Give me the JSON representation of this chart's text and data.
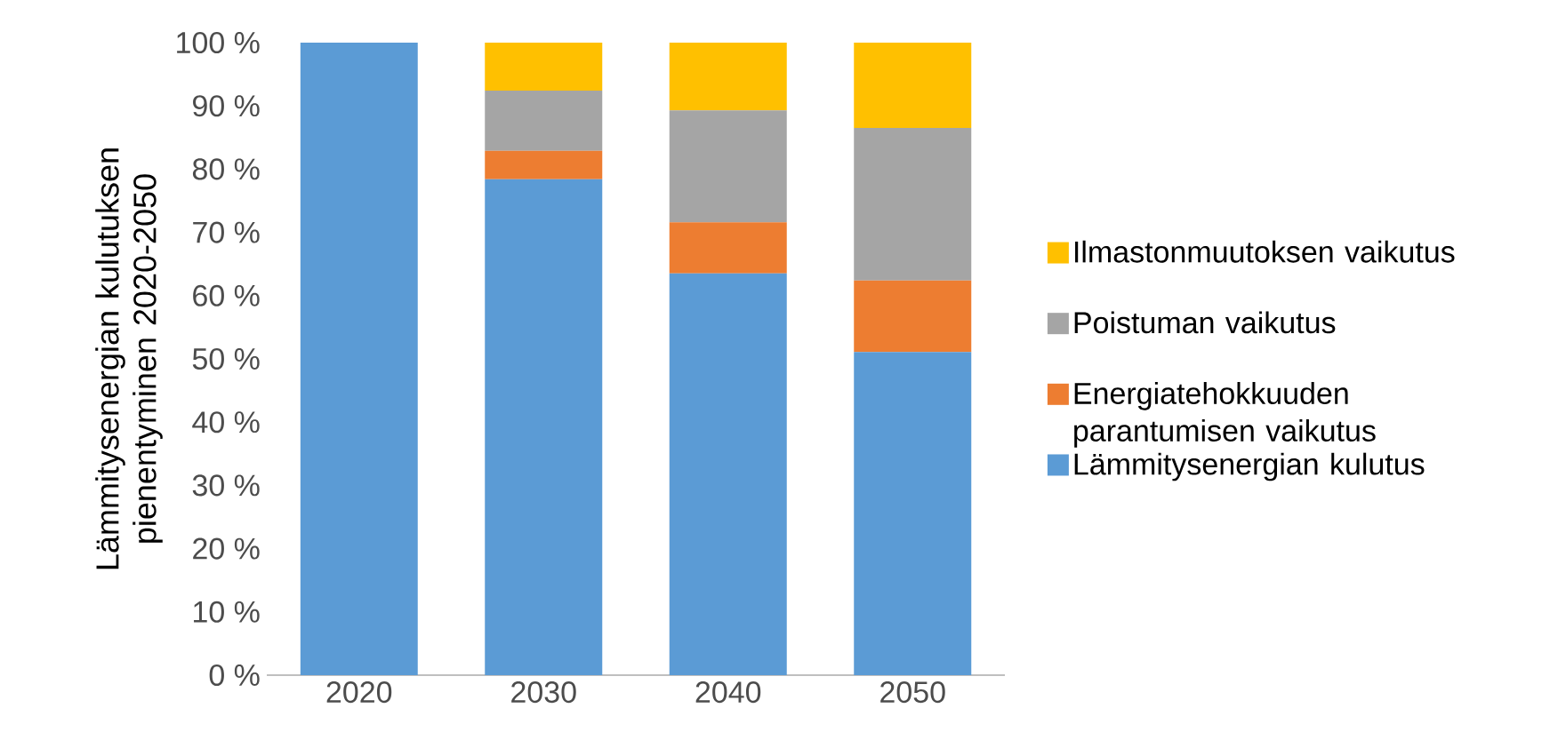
{
  "chart_data": {
    "type": "bar",
    "stacked": true,
    "ylabel": "Lämmitysenergian kulutuksen pienentyminen 2020-2050",
    "categories": [
      "2020",
      "2030",
      "2040",
      "2050"
    ],
    "series": [
      {
        "name": "Lämmitysenergian kulutus",
        "color": "#5b9bd5",
        "values": [
          100,
          78.4,
          63.5,
          51.1
        ]
      },
      {
        "name": "Energiatehokkuuden parantumisen vaikutus",
        "color": "#ed7d31",
        "values": [
          0,
          4.5,
          8.1,
          11.3
        ]
      },
      {
        "name": "Poistuman vaikutus",
        "color": "#a5a5a5",
        "values": [
          0,
          9.5,
          17.7,
          24.1
        ]
      },
      {
        "name": "Ilmastonmuutoksen vaikutus",
        "color": "#ffc000",
        "values": [
          0,
          7.6,
          10.7,
          13.5
        ]
      }
    ],
    "ylim": [
      0,
      100
    ],
    "yticks": [
      {
        "value": 0,
        "label": "0 %"
      },
      {
        "value": 10,
        "label": "10 %"
      },
      {
        "value": 20,
        "label": "20 %"
      },
      {
        "value": 30,
        "label": "30 %"
      },
      {
        "value": 40,
        "label": "40 %"
      },
      {
        "value": 50,
        "label": "50 %"
      },
      {
        "value": 60,
        "label": "60 %"
      },
      {
        "value": 70,
        "label": "70 %"
      },
      {
        "value": 80,
        "label": "80 %"
      },
      {
        "value": 90,
        "label": "90 %"
      },
      {
        "value": 100,
        "label": "100 %"
      }
    ],
    "legend": "right"
  }
}
